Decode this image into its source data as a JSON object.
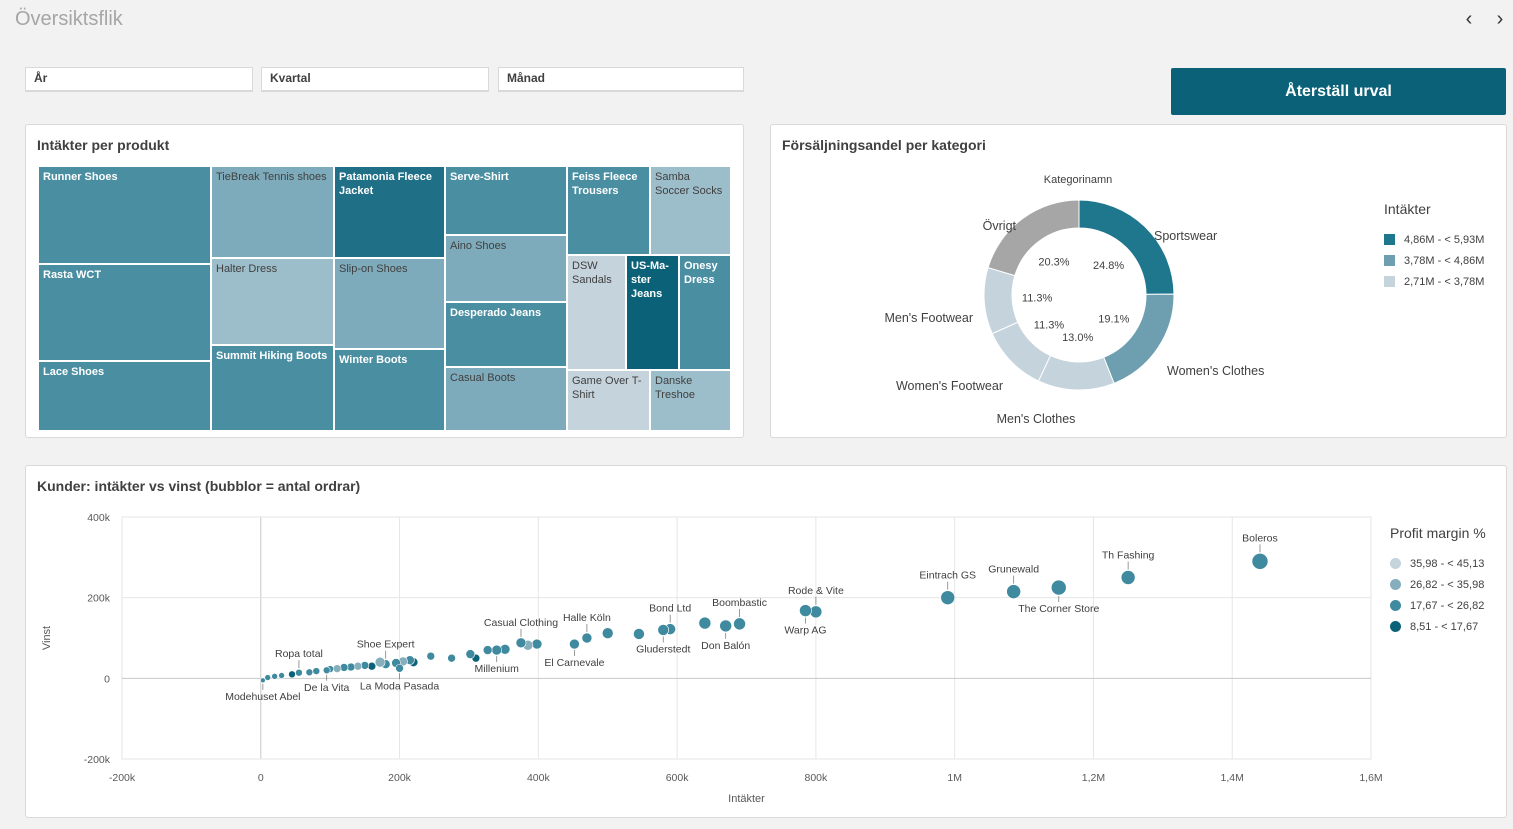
{
  "header": {
    "title": "Översiktsflik",
    "prev_icon": "‹",
    "next_icon": "›"
  },
  "filters": [
    {
      "label": "År"
    },
    {
      "label": "Kvartal"
    },
    {
      "label": "Månad"
    }
  ],
  "reset_button": "Återställ urval",
  "treemap": {
    "title": "Intäkter per produkt",
    "cells": [
      {
        "label": "Runner Shoes",
        "color": "#4a8ea2",
        "text": "dark",
        "bold": true
      },
      {
        "label": "Rasta WCT",
        "color": "#4a8ea2",
        "text": "dark",
        "bold": true
      },
      {
        "label": "Lace Shoes",
        "color": "#4a8ea2",
        "text": "dark",
        "bold": true
      },
      {
        "label": "TieBreak Tennis shoes",
        "color": "#7eabbb",
        "text": "light",
        "bold": false
      },
      {
        "label": "Halter Dress",
        "color": "#9cbdca",
        "text": "light",
        "bold": false
      },
      {
        "label": "Summit Hiking Boots",
        "color": "#4a8ea2",
        "text": "dark",
        "bold": true
      },
      {
        "label": "Patamonia Fleece Jacket",
        "color": "#1f6f86",
        "text": "dark",
        "bold": true
      },
      {
        "label": "Slip-on Shoes",
        "color": "#7eabbb",
        "text": "light",
        "bold": false
      },
      {
        "label": "Winter Boots",
        "color": "#4a8ea2",
        "text": "dark",
        "bold": true
      },
      {
        "label": "Serve-Shirt",
        "color": "#4a8ea2",
        "text": "dark",
        "bold": true
      },
      {
        "label": "Aino Shoes",
        "color": "#7eabbb",
        "text": "light",
        "bold": false
      },
      {
        "label": "Desperado Jeans",
        "color": "#4a8ea2",
        "text": "dark",
        "bold": true
      },
      {
        "label": "Casual Boots",
        "color": "#7eabbb",
        "text": "light",
        "bold": false
      },
      {
        "label": "Feiss Fleece Trousers",
        "color": "#4a8ea2",
        "text": "dark",
        "bold": true
      },
      {
        "label": "Samba Soccer Socks",
        "color": "#9cbdca",
        "text": "light",
        "bold": false
      },
      {
        "label": "DSW Sandals",
        "color": "#c5d3dc",
        "text": "light",
        "bold": false
      },
      {
        "label": "US-Ma-ster Jeans",
        "color": "#0b6278",
        "text": "dark",
        "bold": true
      },
      {
        "label": "Onesy Dress",
        "color": "#4a8ea2",
        "text": "dark",
        "bold": true
      },
      {
        "label": "Game Over T-Shirt",
        "color": "#c5d3dc",
        "text": "light",
        "bold": false
      },
      {
        "label": "Danske Treshoe",
        "color": "#9cbdca",
        "text": "light",
        "bold": false
      }
    ]
  },
  "donut": {
    "title": "Försäljningsandel per kategori",
    "subtitle": "Kategorinamn",
    "legend_title": "Intäkter",
    "legend": [
      {
        "label": "4,86M - < 5,93M",
        "color": "#1f778e"
      },
      {
        "label": "3,78M - < 4,86M",
        "color": "#6e9fb1"
      },
      {
        "label": "2,71M - < 3,78M",
        "color": "#c5d3dc"
      }
    ]
  },
  "scatter": {
    "title": "Kunder: intäkter vs vinst (bubblor = antal ordrar)",
    "legend_title": "Profit margin %",
    "legend": [
      {
        "label": "35,98 - < 45,13",
        "color": "#c5d3dc"
      },
      {
        "label": "26,82 - < 35,98",
        "color": "#86aebd"
      },
      {
        "label": "17,67 - < 26,82",
        "color": "#3f8a9f"
      },
      {
        "label": "8,51 - < 17,67",
        "color": "#0b6278"
      }
    ]
  },
  "chart_data": [
    {
      "type": "pie",
      "title": "Försäljningsandel per kategori",
      "subtitle": "Kategorinamn",
      "slices": [
        {
          "label": "Sportswear",
          "value": 24.8,
          "pct": "24.8%",
          "color": "#1f778e"
        },
        {
          "label": "Women's Clothes",
          "value": 19.1,
          "pct": "19.1%",
          "color": "#6e9fb1"
        },
        {
          "label": "Men's Clothes",
          "value": 13.0,
          "pct": "13.0%",
          "color": "#c5d3dc"
        },
        {
          "label": "Women's Footwear",
          "value": 11.3,
          "pct": "11.3%",
          "color": "#c5d3dc"
        },
        {
          "label": "Men's Footwear",
          "value": 11.3,
          "pct": "11.3%",
          "color": "#c5d3dc"
        },
        {
          "label": "Övrigt",
          "value": 20.3,
          "pct": "20.3%",
          "color": "#a6a6a6"
        }
      ]
    },
    {
      "type": "scatter",
      "title": "Kunder: intäkter vs vinst (bubblor = antal ordrar)",
      "xlabel": "Intäkter",
      "ylabel": "Vinst",
      "xlim": [
        -200000,
        1600000
      ],
      "ylim": [
        -200000,
        400000
      ],
      "xticks": [
        -200000,
        0,
        200000,
        400000,
        600000,
        800000,
        1000000,
        1200000,
        1400000,
        1600000
      ],
      "xtick_labels": [
        "-200k",
        "0",
        "200k",
        "400k",
        "600k",
        "800k",
        "1M",
        "1,2M",
        "1,4M",
        "1,6M"
      ],
      "yticks": [
        -200000,
        0,
        200000,
        400000
      ],
      "ytick_labels": [
        "-200k",
        "0",
        "200k",
        "400k"
      ],
      "points": [
        {
          "x": 1440000,
          "y": 290000,
          "size": 8,
          "color": "#3f8a9f",
          "label": "Boleros",
          "pos": "above"
        },
        {
          "x": 1250000,
          "y": 250000,
          "size": 7,
          "color": "#3f8a9f",
          "label": "Th Fashing",
          "pos": "above"
        },
        {
          "x": 1150000,
          "y": 225000,
          "size": 7.5,
          "color": "#3f8a9f",
          "label": "The Corner Store",
          "pos": "below"
        },
        {
          "x": 1085000,
          "y": 215000,
          "size": 7,
          "color": "#3f8a9f",
          "label": "Grunewald",
          "pos": "above"
        },
        {
          "x": 990000,
          "y": 200000,
          "size": 7,
          "color": "#3f8a9f",
          "label": "Eintrach GS",
          "pos": "above"
        },
        {
          "x": 800000,
          "y": 165000,
          "size": 6,
          "color": "#3f8a9f",
          "label": "Rode & Vite",
          "pos": "above"
        },
        {
          "x": 785000,
          "y": 168000,
          "size": 6,
          "color": "#3f8a9f",
          "label": "Warp AG",
          "pos": "below"
        },
        {
          "x": 690000,
          "y": 135000,
          "size": 6,
          "color": "#3f8a9f",
          "label": "Boombastic",
          "pos": "above"
        },
        {
          "x": 670000,
          "y": 130000,
          "size": 6,
          "color": "#3f8a9f",
          "label": "Don Balón",
          "pos": "below"
        },
        {
          "x": 640000,
          "y": 137000,
          "size": 6,
          "color": "#3f8a9f",
          "label": "",
          "pos": ""
        },
        {
          "x": 590000,
          "y": 122000,
          "size": 5.5,
          "color": "#3f8a9f",
          "label": "Bond Ltd",
          "pos": "above"
        },
        {
          "x": 580000,
          "y": 120000,
          "size": 5.5,
          "color": "#3f8a9f",
          "label": "Gluderstedt",
          "pos": "below"
        },
        {
          "x": 545000,
          "y": 110000,
          "size": 5.5,
          "color": "#3f8a9f",
          "label": "",
          "pos": ""
        },
        {
          "x": 500000,
          "y": 112000,
          "size": 5.5,
          "color": "#3f8a9f",
          "label": "",
          "pos": ""
        },
        {
          "x": 470000,
          "y": 100000,
          "size": 5,
          "color": "#3f8a9f",
          "label": "Halle Köln",
          "pos": "above"
        },
        {
          "x": 452000,
          "y": 85000,
          "size": 5,
          "color": "#3f8a9f",
          "label": "El Carnevale",
          "pos": "below"
        },
        {
          "x": 398000,
          "y": 85000,
          "size": 5,
          "color": "#3f8a9f",
          "label": "",
          "pos": ""
        },
        {
          "x": 385000,
          "y": 82000,
          "size": 5,
          "color": "#86aebd",
          "label": "",
          "pos": ""
        },
        {
          "x": 375000,
          "y": 88000,
          "size": 5,
          "color": "#3f8a9f",
          "label": "Casual Clothing",
          "pos": "above"
        },
        {
          "x": 352000,
          "y": 72000,
          "size": 5,
          "color": "#3f8a9f",
          "label": "",
          "pos": ""
        },
        {
          "x": 340000,
          "y": 70000,
          "size": 5,
          "color": "#3f8a9f",
          "label": "Millenium",
          "pos": "below"
        },
        {
          "x": 327000,
          "y": 70000,
          "size": 4.5,
          "color": "#3f8a9f",
          "label": "",
          "pos": ""
        },
        {
          "x": 310000,
          "y": 50000,
          "size": 4,
          "color": "#0b6278",
          "label": "",
          "pos": ""
        },
        {
          "x": 302000,
          "y": 60000,
          "size": 4.5,
          "color": "#3f8a9f",
          "label": "",
          "pos": ""
        },
        {
          "x": 275000,
          "y": 50000,
          "size": 4,
          "color": "#3f8a9f",
          "label": "",
          "pos": ""
        },
        {
          "x": 245000,
          "y": 55000,
          "size": 4,
          "color": "#3f8a9f",
          "label": "",
          "pos": ""
        },
        {
          "x": 220000,
          "y": 40000,
          "size": 4.5,
          "color": "#0b6278",
          "label": "",
          "pos": ""
        },
        {
          "x": 215000,
          "y": 45000,
          "size": 4.5,
          "color": "#3f8a9f",
          "label": "",
          "pos": ""
        },
        {
          "x": 205000,
          "y": 42000,
          "size": 4.5,
          "color": "#86aebd",
          "label": "",
          "pos": ""
        },
        {
          "x": 195000,
          "y": 38000,
          "size": 4.5,
          "color": "#3f8a9f",
          "label": "",
          "pos": ""
        },
        {
          "x": 180000,
          "y": 35000,
          "size": 4.5,
          "color": "#3f8a9f",
          "label": "Shoe Expert",
          "pos": "above"
        },
        {
          "x": 172000,
          "y": 40000,
          "size": 5,
          "color": "#86aebd",
          "label": "",
          "pos": ""
        },
        {
          "x": 160000,
          "y": 30000,
          "size": 4,
          "color": "#0b6278",
          "label": "",
          "pos": ""
        },
        {
          "x": 150000,
          "y": 32000,
          "size": 4,
          "color": "#3f8a9f",
          "label": "",
          "pos": ""
        },
        {
          "x": 140000,
          "y": 30000,
          "size": 4,
          "color": "#86aebd",
          "label": "",
          "pos": ""
        },
        {
          "x": 130000,
          "y": 28000,
          "size": 4,
          "color": "#3f8a9f",
          "label": "",
          "pos": ""
        },
        {
          "x": 120000,
          "y": 27000,
          "size": 4,
          "color": "#3f8a9f",
          "label": "",
          "pos": ""
        },
        {
          "x": 110000,
          "y": 24000,
          "size": 4,
          "color": "#86aebd",
          "label": "",
          "pos": ""
        },
        {
          "x": 100000,
          "y": 23000,
          "size": 3.5,
          "color": "#3f8a9f",
          "label": "",
          "pos": ""
        },
        {
          "x": 95000,
          "y": 20000,
          "size": 3.5,
          "color": "#3f8a9f",
          "label": "De la Vita",
          "pos": "below"
        },
        {
          "x": 80000,
          "y": 18000,
          "size": 3.5,
          "color": "#3f8a9f",
          "label": "",
          "pos": ""
        },
        {
          "x": 70000,
          "y": 15000,
          "size": 3.5,
          "color": "#3f8a9f",
          "label": "",
          "pos": ""
        },
        {
          "x": 55000,
          "y": 14000,
          "size": 3.5,
          "color": "#3f8a9f",
          "label": "Ropa total",
          "pos": "above"
        },
        {
          "x": 45000,
          "y": 10000,
          "size": 3.5,
          "color": "#0b6278",
          "label": "",
          "pos": ""
        },
        {
          "x": 30000,
          "y": 7000,
          "size": 3,
          "color": "#3f8a9f",
          "label": "",
          "pos": ""
        },
        {
          "x": 20000,
          "y": 5000,
          "size": 3,
          "color": "#3f8a9f",
          "label": "",
          "pos": ""
        },
        {
          "x": 10000,
          "y": 2000,
          "size": 3,
          "color": "#3f8a9f",
          "label": "",
          "pos": ""
        },
        {
          "x": 3000,
          "y": -5000,
          "size": 2.5,
          "color": "#3f8a9f",
          "label": "Modehuset Abel",
          "pos": "below"
        },
        {
          "x": 200000,
          "y": 25000,
          "size": 4,
          "color": "#3f8a9f",
          "label": "La Moda Pasada",
          "pos": "below"
        }
      ]
    }
  ]
}
